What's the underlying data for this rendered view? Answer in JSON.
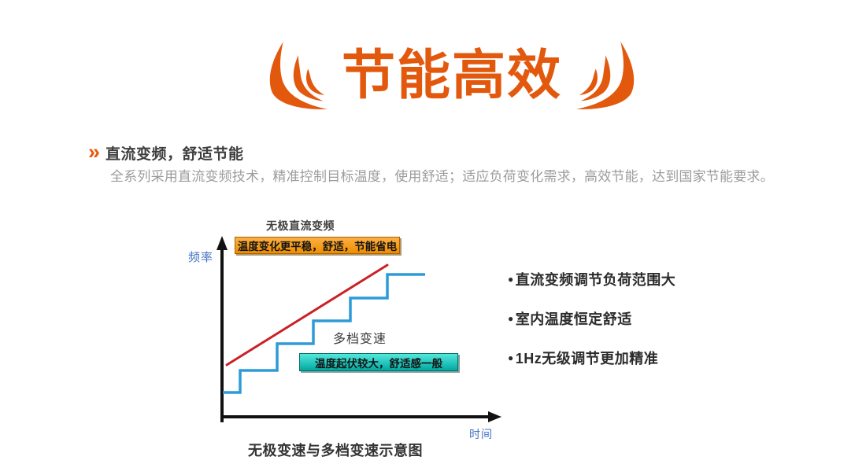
{
  "page": {
    "title": "节能高效",
    "section": {
      "marker": "»",
      "heading": "直流变频，舒适节能",
      "body": "全系列采用直流变频技术，精准控制目标温度，使用舒适；适应负荷变化需求，高效节能，达到国家节能要求。"
    },
    "bullets": [
      {
        "marker": "●",
        "text": "直流变频调节负荷范围大"
      },
      {
        "marker": "●",
        "text": "室内温度恒定舒适"
      },
      {
        "marker": "●",
        "text": "1Hz无级调节更加精准"
      }
    ]
  },
  "chart_data": {
    "type": "line",
    "title": "无极变速与多档变速示意图",
    "xlabel": "时间",
    "ylabel": "频率",
    "axes_numeric": false,
    "legend_position": "inline-annotations",
    "grid": false,
    "series": [
      {
        "name": "无极直流变频",
        "style": "straight-rising",
        "color": "#CB2026",
        "callout": "温度变化更平稳，舒适，节能省电",
        "points": [
          [
            58,
            194
          ],
          [
            262,
            67
          ]
        ]
      },
      {
        "name": "多档变速",
        "style": "step-rising",
        "color": "#2E9BD8",
        "callout": "温度起伏较大，舒适感一般",
        "points": [
          [
            53,
            229
          ],
          [
            75,
            229
          ],
          [
            75,
            201
          ],
          [
            122,
            201
          ],
          [
            122,
            167
          ],
          [
            168,
            167
          ],
          [
            168,
            138
          ],
          [
            215,
            138
          ],
          [
            215,
            109
          ],
          [
            262,
            109
          ],
          [
            262,
            79
          ],
          [
            310,
            79
          ]
        ]
      }
    ],
    "colors": {
      "accent_orange": "#E2590E",
      "callout_orange_fill": "#EE8E00",
      "callout_orange_border": "#A86200",
      "callout_teal_fill": "#00A8A1",
      "callout_teal_border": "#0B6F69",
      "axis_label_blue": "#4472C4",
      "axis_color": "#111111"
    }
  }
}
